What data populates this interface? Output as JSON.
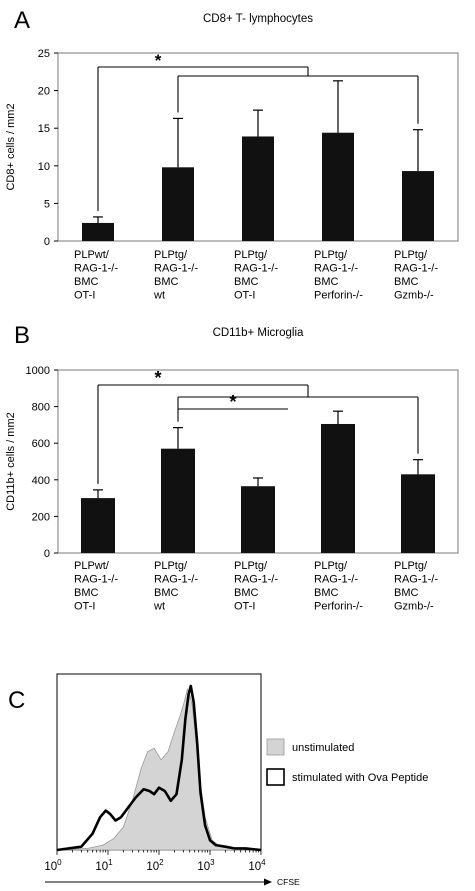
{
  "chart_data": [
    {
      "panel_label": "A",
      "type": "bar",
      "title": "CD8+ T- lymphocytes",
      "ylabel": "CD8+ cells / mm2",
      "xlabel": "",
      "ylim": [
        0,
        25
      ],
      "yticks": [
        "0",
        "5",
        "10",
        "15",
        "20",
        "25"
      ],
      "categories": [
        [
          "PLPwt/",
          "RAG-1-/-",
          "BMC",
          "OT-I"
        ],
        [
          "PLPtg/",
          "RAG-1-/-",
          "BMC",
          "wt"
        ],
        [
          "PLPtg/",
          "RAG-1-/-",
          "BMC",
          "OT-I"
        ],
        [
          "PLPtg/",
          "RAG-1-/-",
          "BMC",
          "Perforin-/-"
        ],
        [
          "PLPtg/",
          "RAG-1-/-",
          "BMC",
          "Gzmb-/-"
        ]
      ],
      "values": [
        2.4,
        9.8,
        13.9,
        14.4,
        9.3
      ],
      "errors": [
        0.8,
        6.5,
        3.5,
        6.9,
        5.5
      ],
      "significance": [
        {
          "from": 0,
          "to": [
            1,
            2,
            3,
            4
          ],
          "level": 1,
          "label": "*"
        },
        {
          "from": 1,
          "to": [
            4
          ],
          "level": 2,
          "label": ""
        }
      ],
      "grid": false
    },
    {
      "panel_label": "B",
      "type": "bar",
      "title": "CD11b+ Microglia",
      "ylabel": "CD11b+ cells / mm2",
      "xlabel": "",
      "ylim": [
        0,
        1000
      ],
      "yticks": [
        "0",
        "200",
        "400",
        "600",
        "800",
        "1000"
      ],
      "categories": [
        [
          "PLPwt/",
          "RAG-1-/-",
          "BMC",
          "OT-I"
        ],
        [
          "PLPtg/",
          "RAG-1-/-",
          "BMC",
          "wt"
        ],
        [
          "PLPtg/",
          "RAG-1-/-",
          "BMC",
          "OT-I"
        ],
        [
          "PLPtg/",
          "RAG-1-/-",
          "BMC",
          "Perforin-/-"
        ],
        [
          "PLPtg/",
          "RAG-1-/-",
          "BMC",
          "Gzmb-/-"
        ]
      ],
      "values": [
        300,
        570,
        365,
        705,
        430
      ],
      "errors": [
        45,
        115,
        45,
        70,
        80
      ],
      "significance": [
        {
          "from": 0,
          "to": [
            1,
            2,
            3,
            4
          ],
          "level": 1,
          "label": "*"
        },
        {
          "from": 1,
          "to": [
            4
          ],
          "level": 2,
          "label": ""
        },
        {
          "from": 1,
          "to": [
            2
          ],
          "level": 3,
          "label": "*"
        }
      ],
      "grid": false
    },
    {
      "panel_label": "C",
      "type": "area",
      "xlabel": "CFSE",
      "xscale": "log",
      "xlim": [
        1,
        10000
      ],
      "xticks": [
        {
          "base": "10",
          "exp": "0"
        },
        {
          "base": "10",
          "exp": "1"
        },
        {
          "base": "10",
          "exp": "2"
        },
        {
          "base": "10",
          "exp": "3"
        },
        {
          "base": "10",
          "exp": "4"
        }
      ],
      "legend_position": "right",
      "series": [
        {
          "name": "unstimulated",
          "style": "filled",
          "color": "#d4d4d4",
          "x": [
            1,
            4,
            8,
            13,
            20,
            30,
            45,
            60,
            80,
            110,
            150,
            200,
            260,
            310,
            360,
            400,
            450,
            520,
            620,
            800,
            1100,
            1600,
            2500,
            5000,
            10000
          ],
          "y": [
            0,
            0.01,
            0.03,
            0.07,
            0.14,
            0.3,
            0.5,
            0.6,
            0.62,
            0.55,
            0.6,
            0.72,
            0.82,
            0.9,
            0.98,
            0.95,
            0.88,
            0.7,
            0.45,
            0.2,
            0.06,
            0.02,
            0.01,
            0,
            0
          ]
        },
        {
          "name": "stimulated with Ova Peptide",
          "style": "line",
          "color": "#000000",
          "x": [
            1,
            3,
            5,
            7,
            9,
            11,
            14,
            18,
            25,
            35,
            50,
            65,
            80,
            100,
            130,
            170,
            220,
            280,
            330,
            380,
            420,
            480,
            560,
            650,
            800,
            1000,
            1300,
            2000,
            3000,
            5000,
            10000
          ],
          "y": [
            0,
            0.02,
            0.1,
            0.2,
            0.24,
            0.22,
            0.18,
            0.2,
            0.26,
            0.32,
            0.37,
            0.36,
            0.34,
            0.38,
            0.36,
            0.3,
            0.34,
            0.55,
            0.8,
            0.95,
            1.0,
            0.9,
            0.65,
            0.35,
            0.15,
            0.06,
            0.03,
            0.02,
            0.01,
            0.01,
            0
          ]
        }
      ]
    }
  ]
}
